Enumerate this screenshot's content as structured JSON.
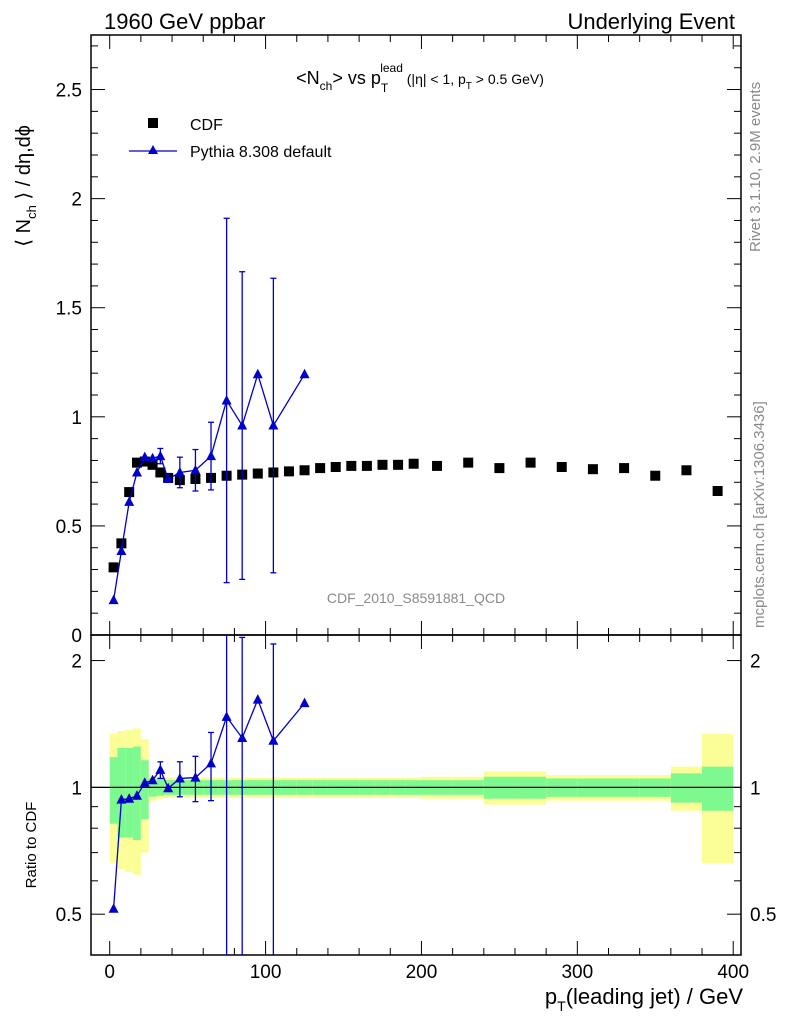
{
  "header": {
    "left": "1960 GeV ppbar",
    "right": "Underlying Event"
  },
  "side_labels": {
    "rivet": "Rivet 3.1.10,  2.9M events",
    "mcplots": "mcplots.cern.ch [arXiv:1306.3436]"
  },
  "watermark": "CDF_2010_S8591881_QCD",
  "chart_data": [
    {
      "panel": "main",
      "type": "scatter",
      "title": {
        "main": "<N",
        "sub1": "ch",
        "mid": "> vs p",
        "sub2": "T",
        "sup": "lead",
        "tail": " (|η| < 1, p",
        "sub3": "T",
        "end": " > 0.5 GeV)"
      },
      "ylabel": {
        "pre": "⟨ N",
        "sub": "ch",
        "post": " ⟩ / dη,dϕ"
      },
      "xlim": [
        -12,
        405
      ],
      "ylim": [
        0,
        2.75
      ],
      "yticks": [
        {
          "value": 0,
          "label": "0"
        },
        {
          "value": 0.5,
          "label": "0.5"
        },
        {
          "value": 1,
          "label": "1"
        },
        {
          "value": 1.5,
          "label": "1.5"
        },
        {
          "value": 2,
          "label": "2"
        },
        {
          "value": 2.5,
          "label": "2.5"
        }
      ],
      "legend": {
        "position": "top-left",
        "entries": [
          "CDF",
          "Pythia 8.308 default"
        ]
      },
      "series": [
        {
          "name": "CDF",
          "color": "#000000",
          "marker": "square",
          "points": [
            {
              "x": 2.5,
              "y": 0.31
            },
            {
              "x": 7.5,
              "y": 0.42
            },
            {
              "x": 12.5,
              "y": 0.655
            },
            {
              "x": 17.5,
              "y": 0.79
            },
            {
              "x": 22.5,
              "y": 0.795
            },
            {
              "x": 27.5,
              "y": 0.78
            },
            {
              "x": 32.5,
              "y": 0.745
            },
            {
              "x": 37.5,
              "y": 0.72
            },
            {
              "x": 45,
              "y": 0.71
            },
            {
              "x": 55,
              "y": 0.715
            },
            {
              "x": 65,
              "y": 0.72
            },
            {
              "x": 75,
              "y": 0.73
            },
            {
              "x": 85,
              "y": 0.735
            },
            {
              "x": 95,
              "y": 0.74
            },
            {
              "x": 105,
              "y": 0.745
            },
            {
              "x": 115,
              "y": 0.75
            },
            {
              "x": 125,
              "y": 0.755
            },
            {
              "x": 135,
              "y": 0.765
            },
            {
              "x": 145,
              "y": 0.77
            },
            {
              "x": 155,
              "y": 0.775
            },
            {
              "x": 165,
              "y": 0.775
            },
            {
              "x": 175,
              "y": 0.78
            },
            {
              "x": 185,
              "y": 0.78
            },
            {
              "x": 195,
              "y": 0.785
            },
            {
              "x": 210,
              "y": 0.775
            },
            {
              "x": 230,
              "y": 0.79
            },
            {
              "x": 250,
              "y": 0.765
            },
            {
              "x": 270,
              "y": 0.79
            },
            {
              "x": 290,
              "y": 0.77
            },
            {
              "x": 310,
              "y": 0.76
            },
            {
              "x": 330,
              "y": 0.765
            },
            {
              "x": 350,
              "y": 0.73
            },
            {
              "x": 370,
              "y": 0.755
            },
            {
              "x": 390,
              "y": 0.66
            }
          ]
        },
        {
          "name": "Pythia 8.308 default",
          "color": "#0000cc",
          "marker": "triangle",
          "line": true,
          "points": [
            {
              "x": 2.5,
              "y": 0.16
            },
            {
              "x": 7.5,
              "y": 0.385
            },
            {
              "x": 12.5,
              "y": 0.61
            },
            {
              "x": 17.5,
              "y": 0.745
            },
            {
              "x": 22.5,
              "y": 0.815
            },
            {
              "x": 27.5,
              "y": 0.81
            },
            {
              "x": 32.5,
              "y": 0.82,
              "err": 0.035
            },
            {
              "x": 37.5,
              "y": 0.715
            },
            {
              "x": 45,
              "y": 0.745,
              "err": 0.07
            },
            {
              "x": 55,
              "y": 0.755,
              "err": 0.095
            },
            {
              "x": 65,
              "y": 0.82,
              "err": 0.155
            },
            {
              "x": 75,
              "y": 1.075,
              "err": 0.835
            },
            {
              "x": 85,
              "y": 0.96,
              "err": 0.705
            },
            {
              "x": 95,
              "y": 1.195
            },
            {
              "x": 105,
              "y": 0.96,
              "err": 0.675
            },
            {
              "x": 125,
              "y": 1.195
            }
          ]
        }
      ]
    },
    {
      "panel": "ratio",
      "type": "line",
      "ylabel": "Ratio to CDF",
      "xlabel": {
        "pre": "p",
        "sub": "T",
        "post": "(leading jet) / GeV"
      },
      "xlim": [
        -12,
        405
      ],
      "ylim": [
        0.4,
        2.3
      ],
      "yscale": "log",
      "reference": 1,
      "xticks": [
        {
          "value": 0,
          "label": "0"
        },
        {
          "value": 100,
          "label": "100"
        },
        {
          "value": 200,
          "label": "200"
        },
        {
          "value": 300,
          "label": "300"
        },
        {
          "value": 400,
          "label": "400"
        }
      ],
      "yticks": [
        {
          "value": 0.5,
          "label": "0.5"
        },
        {
          "value": 1,
          "label": "1"
        },
        {
          "value": 2,
          "label": "2"
        }
      ],
      "band_edges": [
        0,
        5,
        10,
        15,
        20,
        25,
        30,
        35,
        40,
        50,
        60,
        70,
        80,
        90,
        100,
        110,
        120,
        130,
        140,
        150,
        160,
        170,
        180,
        190,
        200,
        220,
        240,
        260,
        280,
        300,
        320,
        340,
        360,
        380,
        400
      ],
      "band_green": [
        0.18,
        0.24,
        0.24,
        0.25,
        0.16,
        0.05,
        0.045,
        0.04,
        0.04,
        0.04,
        0.04,
        0.04,
        0.04,
        0.04,
        0.04,
        0.04,
        0.04,
        0.04,
        0.04,
        0.04,
        0.04,
        0.04,
        0.04,
        0.04,
        0.04,
        0.04,
        0.06,
        0.06,
        0.05,
        0.05,
        0.05,
        0.05,
        0.08,
        0.12
      ],
      "band_yellow": [
        0.34,
        0.36,
        0.37,
        0.38,
        0.3,
        0.07,
        0.06,
        0.055,
        0.055,
        0.055,
        0.055,
        0.055,
        0.055,
        0.055,
        0.055,
        0.055,
        0.055,
        0.055,
        0.055,
        0.055,
        0.055,
        0.055,
        0.055,
        0.055,
        0.06,
        0.06,
        0.09,
        0.09,
        0.07,
        0.07,
        0.07,
        0.07,
        0.12,
        0.34
      ],
      "band_colors": {
        "green": "#7ef98f",
        "yellow": "#fbfd96"
      },
      "series": [
        {
          "name": "Pythia 8.308 default",
          "color": "#0000cc",
          "marker": "triangle",
          "points": [
            {
              "x": 2.5,
              "y": 0.515
            },
            {
              "x": 7.5,
              "y": 0.935
            },
            {
              "x": 12.5,
              "y": 0.94
            },
            {
              "x": 17.5,
              "y": 0.955
            },
            {
              "x": 22.5,
              "y": 1.025
            },
            {
              "x": 27.5,
              "y": 1.04
            },
            {
              "x": 32.5,
              "y": 1.1,
              "err": 0.05
            },
            {
              "x": 37.5,
              "y": 0.995
            },
            {
              "x": 45,
              "y": 1.05,
              "err": 0.1
            },
            {
              "x": 55,
              "y": 1.055,
              "err": 0.13
            },
            {
              "x": 65,
              "y": 1.14,
              "err": 0.21
            },
            {
              "x": 75,
              "y": 1.47,
              "err": 1.14
            },
            {
              "x": 85,
              "y": 1.31,
              "err": 0.96
            },
            {
              "x": 95,
              "y": 1.615
            },
            {
              "x": 105,
              "y": 1.29,
              "err": 0.9
            },
            {
              "x": 125,
              "y": 1.585
            }
          ]
        }
      ]
    }
  ]
}
